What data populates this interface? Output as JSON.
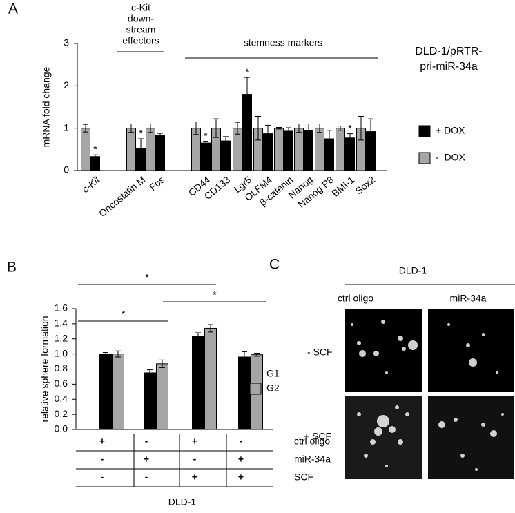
{
  "panel_labels": [
    "A",
    "B",
    "C"
  ],
  "chart_data": [
    {
      "type": "bar",
      "ylabel": "mRNA fold change",
      "subtitle": [
        "DLD-1/pRTR-",
        "pri-miR-34a"
      ],
      "groups": [
        {
          "lines": [
            "c-Kit",
            "down-",
            "stream",
            "effectors"
          ]
        },
        {
          "lines": [
            "stemness markers"
          ]
        }
      ],
      "categories": [
        "c-Kit",
        "Oncostatin M",
        "Fos",
        "CD44",
        "CD133",
        "Lgr5",
        "OLFM4",
        "β-catenin",
        "Nanog",
        "Nanog P8",
        "BMI-1",
        "Sox2"
      ],
      "series": [
        {
          "name": "+ DOX",
          "color": "#000000",
          "values": [
            0.33,
            0.53,
            0.84,
            0.65,
            0.7,
            1.8,
            0.87,
            0.93,
            0.95,
            0.75,
            0.77,
            0.92
          ],
          "errors": [
            0.04,
            0.22,
            0.04,
            0.04,
            0.1,
            0.4,
            0.2,
            0.08,
            0.15,
            0.2,
            0.1,
            0.3
          ],
          "marks": [
            "*",
            "*",
            null,
            "*",
            null,
            "*",
            null,
            null,
            null,
            null,
            "*",
            null
          ]
        },
        {
          "name": "-  DOX",
          "color": "#a6a6a6",
          "values": [
            1.0,
            1.0,
            1.0,
            1.0,
            1.0,
            1.0,
            1.0,
            1.0,
            1.0,
            1.0,
            1.0,
            1.0
          ],
          "errors": [
            0.09,
            0.1,
            0.1,
            0.15,
            0.22,
            0.14,
            0.28,
            0.02,
            0.1,
            0.1,
            0.05,
            0.28
          ]
        }
      ],
      "ylim": [
        0,
        3
      ],
      "yticks": [
        0,
        1,
        2,
        3
      ]
    },
    {
      "type": "bar",
      "ylabel": "relative sphere formation",
      "categories": [
        null,
        null,
        null,
        null
      ],
      "series": [
        {
          "name": "G1",
          "color": "#000000",
          "values": [
            1.0,
            0.75,
            1.23,
            0.96
          ],
          "errors": [
            0.02,
            0.04,
            0.05,
            0.07
          ]
        },
        {
          "name": "G2",
          "color": "#a6a6a6",
          "values": [
            1.0,
            0.87,
            1.34,
            0.99
          ],
          "errors": [
            0.04,
            0.05,
            0.05,
            0.02
          ]
        }
      ],
      "brackets": [
        "*",
        "*",
        "*"
      ],
      "conditions": [
        {
          "label": "ctrl oligo",
          "values": [
            "+",
            "-",
            "+",
            "-"
          ]
        },
        {
          "label": "miR-34a",
          "values": [
            "-",
            "+",
            "-",
            "+"
          ]
        },
        {
          "label": "SCF",
          "values": [
            "-",
            "-",
            "+",
            "+"
          ]
        }
      ],
      "footer": "DLD-1",
      "ylim": [
        0,
        1.6
      ],
      "yticks": [
        {
          "value": 0,
          "label": "0.0"
        },
        {
          "value": 0.2,
          "label": "0.2"
        },
        {
          "value": 0.4,
          "label": "0.4"
        },
        {
          "value": 0.6,
          "label": "0.6"
        },
        {
          "value": 0.8,
          "label": "0.8"
        },
        {
          "value": 1,
          "label": "1.0"
        },
        {
          "value": 1.2,
          "label": "1.2"
        },
        {
          "value": 1.4,
          "label": "1.4"
        },
        {
          "value": 1.6,
          "label": "1.6"
        }
      ]
    }
  ],
  "panel_c": {
    "title": "DLD-1",
    "columns": [
      "ctrl oligo",
      "miR-34a"
    ],
    "rows": [
      "- SCF",
      "+ SCF"
    ]
  }
}
